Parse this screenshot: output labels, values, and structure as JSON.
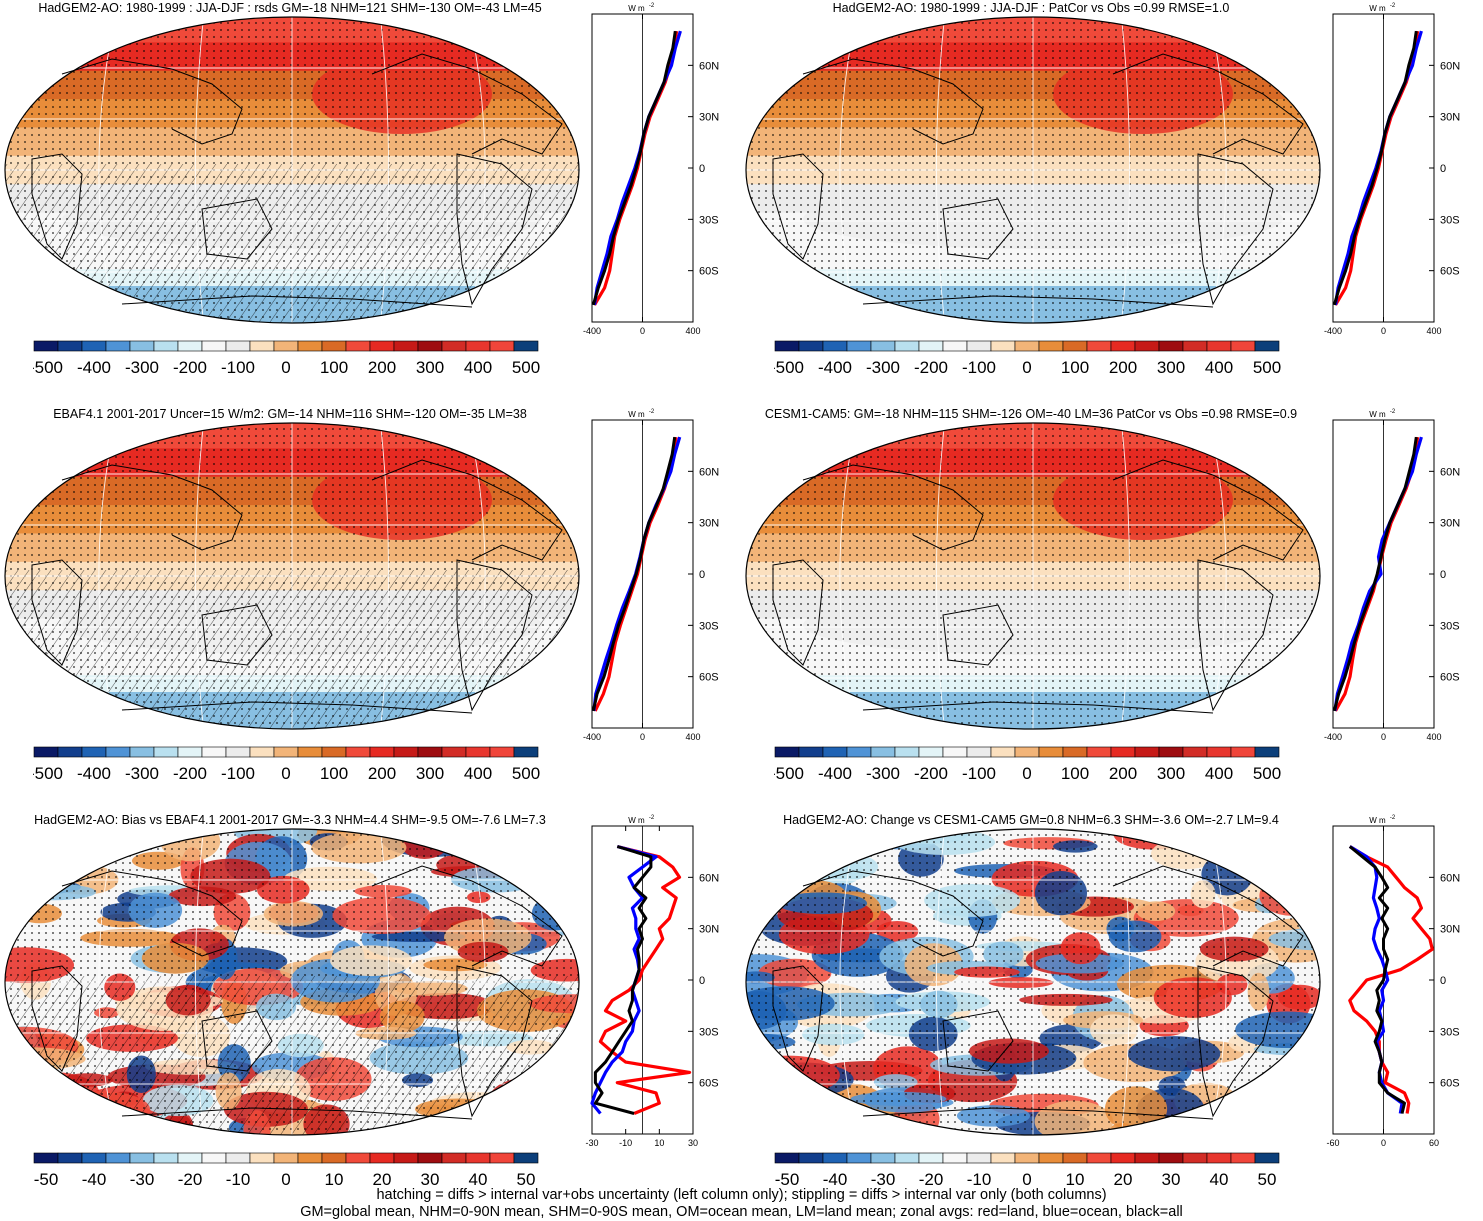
{
  "colors": {
    "diverging": [
      "#0a1a66",
      "#123e8c",
      "#1f63b4",
      "#4f93d6",
      "#88bfe2",
      "#b9e0ef",
      "#e3f4f7",
      "#f7f7f7",
      "#ececec",
      "#fbe0bf",
      "#f2b478",
      "#e88d3a",
      "#d96a26",
      "#f04a3a",
      "#e62a22",
      "#c61a17",
      "#9e0d10",
      "#d22c26",
      "#e8362e",
      "#f0453a",
      "#0c3f7a"
    ],
    "zonal_land": "#ff0000",
    "zonal_ocean": "#0000ff",
    "zonal_all": "#000000"
  },
  "panels": [
    {
      "id": "hadgem-jja-djf",
      "title": "HadGEM2-AO: 1980-1999 : JJA-DJF : rsds GM=-18 NHM=121 SHM=-130 OM=-43 LM=45",
      "map_type": "mean",
      "hatching": true,
      "cbar_labels": [
        "-500",
        "-400",
        "-300",
        "-200",
        "-100",
        "0",
        "100",
        "200",
        "300",
        "400",
        "500"
      ],
      "chart_data": {
        "type": "line",
        "title": "",
        "xlabel": "",
        "ylabel": "",
        "xunit_label": "W m",
        "xunit_sup": "-2",
        "xticks": [
          "-400",
          "0",
          "400"
        ],
        "xlim": [
          -400,
          400
        ],
        "ylim": [
          -90,
          90
        ],
        "yticks": [
          "60N",
          "30N",
          "0",
          "30S",
          "60S"
        ],
        "lat": [
          80,
          70,
          60,
          50,
          40,
          30,
          20,
          10,
          0,
          -10,
          -20,
          -30,
          -40,
          -50,
          -60,
          -70,
          -80
        ],
        "series": [
          {
            "values": [
              270,
              250,
              220,
              180,
              120,
              60,
              20,
              -10,
              -40,
              -80,
              -130,
              -180,
              -220,
              -240,
              -260,
              -300,
              -380
            ]
          },
          {
            "values": [
              300,
              260,
              230,
              170,
              110,
              50,
              10,
              -20,
              -60,
              -110,
              -160,
              -200,
              -250,
              -280,
              -320,
              -360,
              -380
            ]
          },
          {
            "values": [
              260,
              240,
              200,
              170,
              110,
              50,
              10,
              -15,
              -50,
              -90,
              -140,
              -190,
              -230,
              -260,
              -300,
              -350,
              -390
            ]
          }
        ]
      }
    },
    {
      "id": "hadgem-patcor",
      "title": "HadGEM2-AO: 1980-1999 : JJA-DJF : PatCor vs Obs =0.99 RMSE=1.0",
      "map_type": "mean",
      "hatching": false,
      "cbar_labels": [
        "-500",
        "-400",
        "-300",
        "-200",
        "-100",
        "0",
        "100",
        "200",
        "300",
        "400",
        "500"
      ],
      "chart_data": {
        "type": "line",
        "title": "",
        "xlabel": "",
        "ylabel": "",
        "xunit_label": "W m",
        "xunit_sup": "-2",
        "xticks": [
          "-400",
          "0",
          "400"
        ],
        "xlim": [
          -400,
          400
        ],
        "ylim": [
          -90,
          90
        ],
        "yticks": [
          "60N",
          "30N",
          "0",
          "30S",
          "60S"
        ],
        "lat": [
          80,
          70,
          60,
          50,
          40,
          30,
          20,
          10,
          0,
          -10,
          -20,
          -30,
          -40,
          -50,
          -60,
          -70,
          -80
        ],
        "series": [
          {
            "values": [
              270,
              250,
              220,
              180,
              120,
              60,
              20,
              -10,
              -40,
              -80,
              -130,
              -180,
              -220,
              -240,
              -260,
              -300,
              -380
            ]
          },
          {
            "values": [
              300,
              260,
              230,
              170,
              110,
              50,
              10,
              -20,
              -60,
              -110,
              -160,
              -200,
              -250,
              -280,
              -320,
              -360,
              -380
            ]
          },
          {
            "values": [
              260,
              240,
              200,
              170,
              110,
              50,
              10,
              -15,
              -50,
              -90,
              -140,
              -190,
              -230,
              -260,
              -300,
              -350,
              -390
            ]
          }
        ]
      }
    },
    {
      "id": "ebaf",
      "title": "EBAF4.1 2001-2017 Uncer=15 W/m2: GM=-14 NHM=116 SHM=-120 OM=-35 LM=38",
      "map_type": "mean",
      "hatching": true,
      "cbar_labels": [
        "-500",
        "-400",
        "-300",
        "-200",
        "-100",
        "0",
        "100",
        "200",
        "300",
        "400",
        "500"
      ],
      "chart_data": {
        "type": "line",
        "title": "",
        "xlabel": "",
        "ylabel": "",
        "xunit_label": "W m",
        "xunit_sup": "-2",
        "xticks": [
          "-400",
          "0",
          "400"
        ],
        "xlim": [
          -400,
          400
        ],
        "ylim": [
          -90,
          90
        ],
        "yticks": [
          "60N",
          "30N",
          "0",
          "30S",
          "60S"
        ],
        "lat": [
          80,
          70,
          60,
          50,
          40,
          30,
          20,
          10,
          0,
          -10,
          -20,
          -30,
          -40,
          -50,
          -60,
          -70,
          -80
        ],
        "series": [
          {
            "values": [
              265,
              245,
              215,
              175,
              120,
              60,
              20,
              -10,
              -40,
              -85,
              -130,
              -175,
              -215,
              -240,
              -265,
              -310,
              -375
            ]
          },
          {
            "values": [
              295,
              255,
              225,
              170,
              105,
              50,
              10,
              -20,
              -55,
              -105,
              -160,
              -205,
              -245,
              -290,
              -330,
              -370,
              -385
            ]
          },
          {
            "values": [
              255,
              235,
              200,
              165,
              110,
              50,
              10,
              -15,
              -50,
              -95,
              -140,
              -190,
              -230,
              -265,
              -305,
              -360,
              -390
            ]
          }
        ]
      }
    },
    {
      "id": "cesm",
      "title": "CESM1-CAM5: GM=-18 NHM=115 SHM=-126 OM=-40 LM=36 PatCor vs Obs =0.98 RMSE=0.9",
      "map_type": "mean",
      "hatching": false,
      "cbar_labels": [
        "-500",
        "-400",
        "-300",
        "-200",
        "-100",
        "0",
        "100",
        "200",
        "300",
        "400",
        "500"
      ],
      "chart_data": {
        "type": "line",
        "title": "",
        "xlabel": "",
        "ylabel": "",
        "xunit_label": "W m",
        "xunit_sup": "-2",
        "xticks": [
          "-400",
          "0",
          "400"
        ],
        "xlim": [
          -400,
          400
        ],
        "ylim": [
          -90,
          90
        ],
        "yticks": [
          "60N",
          "30N",
          "0",
          "30S",
          "60S"
        ],
        "lat": [
          80,
          70,
          60,
          50,
          40,
          30,
          20,
          10,
          0,
          -10,
          -20,
          -30,
          -40,
          -50,
          -60,
          -70,
          -80
        ],
        "series": [
          {
            "values": [
              270,
              250,
              225,
              180,
              120,
              60,
              20,
              -15,
              -45,
              -80,
              -130,
              -180,
              -220,
              -245,
              -265,
              -305,
              -380
            ]
          },
          {
            "values": [
              300,
              260,
              230,
              170,
              110,
              50,
              -10,
              -40,
              -20,
              -110,
              -160,
              -200,
              -250,
              -285,
              -325,
              -365,
              -385
            ]
          },
          {
            "values": [
              260,
              240,
              205,
              170,
              110,
              50,
              10,
              -20,
              -50,
              -90,
              -140,
              -190,
              -230,
              -265,
              -305,
              -355,
              -390
            ]
          }
        ]
      }
    },
    {
      "id": "bias",
      "title": "HadGEM2-AO: Bias vs EBAF4.1 2001-2017 GM=-3.3 NHM=4.4 SHM=-9.5 OM=-7.6 LM=7.3",
      "map_type": "diff",
      "hatching": true,
      "cbar_labels": [
        "-50",
        "-40",
        "-30",
        "-20",
        "-10",
        "0",
        "10",
        "20",
        "30",
        "40",
        "50"
      ],
      "chart_data": {
        "type": "line",
        "title": "",
        "xlabel": "",
        "ylabel": "",
        "xunit_label": "W m",
        "xunit_sup": "-2",
        "xticks": [
          "-30",
          "-10",
          "10",
          "30"
        ],
        "xlim": [
          -30,
          30
        ],
        "ylim": [
          -90,
          90
        ],
        "yticks": [
          "60N",
          "30N",
          "0",
          "30S",
          "60S"
        ],
        "lat": [
          78,
          72,
          66,
          60,
          54,
          48,
          42,
          36,
          30,
          24,
          18,
          12,
          6,
          0,
          -6,
          -12,
          -18,
          -24,
          -30,
          -36,
          -42,
          -48,
          -54,
          -60,
          -66,
          -72,
          -78
        ],
        "series": [
          {
            "values": [
              -15,
              10,
              18,
              22,
              12,
              20,
              18,
              16,
              10,
              12,
              8,
              4,
              0,
              -2,
              -8,
              -18,
              -22,
              -10,
              -22,
              -25,
              -18,
              -10,
              28,
              -15,
              8,
              10,
              -5
            ]
          },
          {
            "values": [
              -15,
              8,
              0,
              -8,
              -5,
              0,
              -6,
              -4,
              -4,
              -2,
              -5,
              -3,
              -2,
              -4,
              -6,
              -4,
              -2,
              -5,
              -6,
              -10,
              -12,
              -18,
              -22,
              -25,
              -28,
              -30,
              -25
            ]
          },
          {
            "values": [
              -15,
              5,
              5,
              0,
              -5,
              2,
              -2,
              2,
              -2,
              0,
              -3,
              -2,
              -2,
              -4,
              -6,
              -6,
              -8,
              -6,
              -10,
              -14,
              -18,
              -22,
              -28,
              -28,
              -24,
              -28,
              -5
            ]
          }
        ]
      }
    },
    {
      "id": "change",
      "title": "HadGEM2-AO: Change vs CESM1-CAM5 GM=0.8 NHM=6.3 SHM=-3.6 OM=-2.7 LM=9.4",
      "map_type": "diff",
      "hatching": false,
      "cbar_labels": [
        "-50",
        "-40",
        "-30",
        "-20",
        "-10",
        "0",
        "10",
        "20",
        "30",
        "40",
        "50"
      ],
      "chart_data": {
        "type": "line",
        "title": "",
        "xlabel": "",
        "ylabel": "",
        "xunit_label": "W m",
        "xunit_sup": "-2",
        "xticks": [
          "-60",
          "0",
          "60"
        ],
        "xlim": [
          -60,
          60
        ],
        "ylim": [
          -90,
          90
        ],
        "yticks": [
          "60N",
          "30N",
          "0",
          "30S",
          "60S"
        ],
        "lat": [
          78,
          72,
          66,
          60,
          54,
          48,
          42,
          36,
          30,
          24,
          18,
          12,
          6,
          0,
          -6,
          -12,
          -18,
          -24,
          -30,
          -36,
          -42,
          -48,
          -54,
          -60,
          -66,
          -72,
          -78
        ],
        "series": [
          {
            "values": [
              -40,
              -20,
              5,
              15,
              25,
              40,
              45,
              35,
              45,
              55,
              58,
              40,
              20,
              -20,
              -30,
              -40,
              -35,
              -20,
              -10,
              -5,
              -5,
              -2,
              5,
              2,
              25,
              30,
              28
            ]
          },
          {
            "values": [
              -40,
              -20,
              -10,
              -8,
              -10,
              -12,
              -8,
              -5,
              -10,
              -12,
              -8,
              -2,
              2,
              5,
              -2,
              0,
              -5,
              -2,
              0,
              -8,
              -5,
              -2,
              -5,
              -2,
              5,
              22,
              20
            ]
          },
          {
            "values": [
              -40,
              -25,
              -10,
              -2,
              5,
              -5,
              5,
              -2,
              5,
              0,
              0,
              5,
              2,
              0,
              -8,
              -5,
              -8,
              -2,
              -5,
              -10,
              -5,
              -2,
              -5,
              -5,
              5,
              25,
              22
            ]
          }
        ]
      }
    }
  ],
  "footer": {
    "line1": "hatching = diffs > internal var+obs uncertainty (left column only); stippling = diffs > internal var only (both columns)",
    "line2": "GM=global mean, NHM=0-90N mean, SHM=0-90S mean, OM=ocean mean, LM=land mean; zonal avgs: red=land, blue=ocean, black=all"
  }
}
